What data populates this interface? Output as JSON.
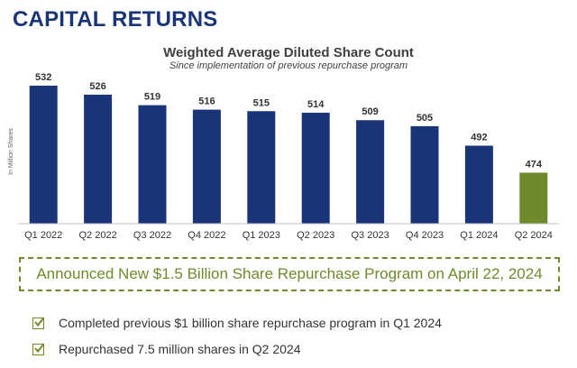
{
  "page": {
    "title": "CAPITAL RETURNS"
  },
  "chart_data": {
    "type": "bar",
    "title": "Weighted Average Diluted Share Count",
    "subtitle": "Since implementation of previous repurchase program",
    "ylabel": "In Million Shares",
    "xlabel": "",
    "categories": [
      "Q1 2022",
      "Q2 2022",
      "Q3 2022",
      "Q4 2022",
      "Q1 2023",
      "Q2 2023",
      "Q3 2023",
      "Q4 2023",
      "Q1 2024",
      "Q2 2024"
    ],
    "values": [
      532,
      526,
      519,
      516,
      515,
      514,
      509,
      505,
      492,
      474
    ],
    "ylim": [
      440,
      535
    ],
    "grid": false,
    "colors": {
      "default_bar": "#1a3478",
      "highlight_bar": "#6f8a2a",
      "highlight_category": "Q2 2024"
    }
  },
  "announcement": {
    "text": "Announced New $1.5 Billion Share Repurchase Program on April 22, 2024"
  },
  "bullets": [
    {
      "icon": "checkbox-icon",
      "text": "Completed previous $1 billion share repurchase program in Q1 2024"
    },
    {
      "icon": "checkbox-icon",
      "text": "Repurchased 7.5 million shares in Q2 2024"
    }
  ]
}
